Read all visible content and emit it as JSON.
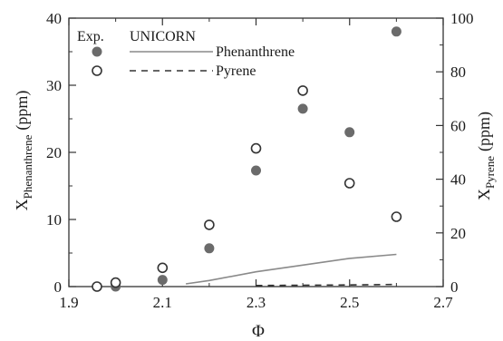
{
  "chart_data": {
    "type": "scatter",
    "x_label": "Φ",
    "y_left_label": {
      "main": "X",
      "sub": "Phenanthrene",
      "unit": "(ppm)"
    },
    "y_right_label": {
      "main": "X",
      "sub": "Pyrene",
      "unit": "(ppm)"
    },
    "x_range": [
      1.9,
      2.7
    ],
    "y_left_range": [
      0,
      40
    ],
    "y_right_range": [
      0,
      100
    ],
    "x_ticks": [
      "1.9",
      "2.1",
      "2.3",
      "2.5",
      "2.7"
    ],
    "y_left_ticks": [
      "0",
      "10",
      "20",
      "30",
      "40"
    ],
    "y_right_ticks": [
      "0",
      "20",
      "40",
      "60",
      "80",
      "100"
    ],
    "legend": {
      "header_exp": "Exp.",
      "header_model": "UNICORN",
      "entries": [
        {
          "name": "Phenanthrene",
          "marker": "filled-circle",
          "line": "solid"
        },
        {
          "name": "Pyrene",
          "marker": "open-circle",
          "line": "dashed"
        }
      ]
    },
    "series": [
      {
        "name": "Phenanthrene",
        "kind": "experiment",
        "axis": "left",
        "marker": "filled-circle",
        "color": "#6b6b6b",
        "points": [
          [
            1.96,
            0
          ],
          [
            2.0,
            0
          ],
          [
            2.1,
            1
          ],
          [
            2.2,
            5.7
          ],
          [
            2.3,
            17.3
          ],
          [
            2.4,
            26.5
          ],
          [
            2.5,
            23
          ],
          [
            2.6,
            38
          ]
        ]
      },
      {
        "name": "Pyrene",
        "kind": "experiment",
        "axis": "right",
        "marker": "open-circle",
        "color": "#333333",
        "points": [
          [
            1.96,
            0
          ],
          [
            2.0,
            1.5
          ],
          [
            2.1,
            7
          ],
          [
            2.2,
            23
          ],
          [
            2.3,
            51.5
          ],
          [
            2.4,
            73
          ],
          [
            2.5,
            38.5
          ],
          [
            2.6,
            26
          ]
        ]
      },
      {
        "name": "Phenanthrene",
        "kind": "model",
        "axis": "left",
        "line": "solid",
        "color": "#8a8a8a",
        "points": [
          [
            2.15,
            0.4
          ],
          [
            2.2,
            0.9
          ],
          [
            2.3,
            2.2
          ],
          [
            2.4,
            3.2
          ],
          [
            2.5,
            4.2
          ],
          [
            2.6,
            4.8
          ]
        ]
      },
      {
        "name": "Pyrene",
        "kind": "model",
        "axis": "right",
        "line": "dashed",
        "color": "#333333",
        "points": [
          [
            2.3,
            0.4
          ],
          [
            2.4,
            0.5
          ],
          [
            2.5,
            0.6
          ],
          [
            2.6,
            0.8
          ]
        ]
      }
    ]
  }
}
